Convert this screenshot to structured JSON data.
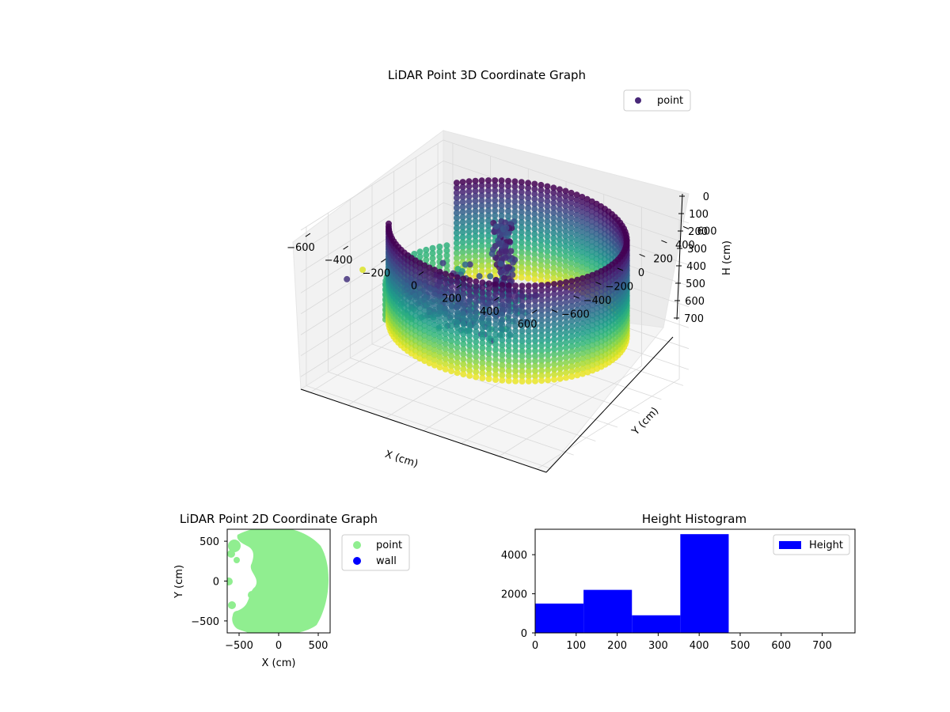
{
  "chart_data": [
    {
      "type": "scatter3d",
      "title": "LiDAR Point 3D Coordinate Graph",
      "xlabel": "X (cm)",
      "ylabel": "Y (cm)",
      "zlabel": "H (cm)",
      "xlim": [
        -650,
        650
      ],
      "ylim": [
        -650,
        650
      ],
      "zlim": [
        0,
        760
      ],
      "z_inverted": true,
      "xticks": [
        -600,
        -400,
        -200,
        0,
        200,
        400,
        600
      ],
      "yticks": [
        -600,
        -400,
        -200,
        0,
        200,
        400,
        600
      ],
      "zticks": [
        0,
        100,
        200,
        300,
        400,
        500,
        600,
        700
      ],
      "grid": true,
      "legend": {
        "position": "top-right",
        "entries": [
          "point"
        ]
      },
      "colormap": "viridis",
      "series": [
        {
          "name": "point",
          "description_shape": "curved wall of points forming a ring around the origin, radius about 600, heights 0-470; scattered interior clusters at heights 350-470",
          "color_scale": "viridis"
        }
      ]
    },
    {
      "type": "scatter",
      "title": "LiDAR Point 2D Coordinate Graph",
      "xlabel": "X (cm)",
      "ylabel": "Y (cm)",
      "xlim": [
        -650,
        650
      ],
      "ylim": [
        -650,
        650
      ],
      "xticks": [
        -500,
        0,
        500
      ],
      "yticks": [
        -500,
        0,
        500
      ],
      "legend": {
        "position": "outside-right",
        "entries": [
          "point",
          "wall"
        ]
      },
      "series": [
        {
          "name": "point",
          "color": "#90ee90"
        },
        {
          "name": "wall",
          "color": "#0000ff"
        }
      ]
    },
    {
      "type": "bar",
      "title": "Height Histogram",
      "xlabel": "",
      "ylabel": "",
      "xlim": [
        0,
        780
      ],
      "ylim": [
        0,
        5300
      ],
      "xticks": [
        0,
        100,
        200,
        300,
        400,
        500,
        600,
        700
      ],
      "yticks": [
        0,
        2000,
        4000
      ],
      "legend": {
        "position": "top-right",
        "entries": [
          "Height"
        ]
      },
      "color": "#0000ff",
      "bins": [
        {
          "from": 0,
          "to": 118,
          "value": 1500
        },
        {
          "from": 118,
          "to": 236,
          "value": 2200
        },
        {
          "from": 236,
          "to": 354,
          "value": 900
        },
        {
          "from": 354,
          "to": 472,
          "value": 5050
        }
      ],
      "series": [
        {
          "name": "Height"
        }
      ]
    }
  ]
}
